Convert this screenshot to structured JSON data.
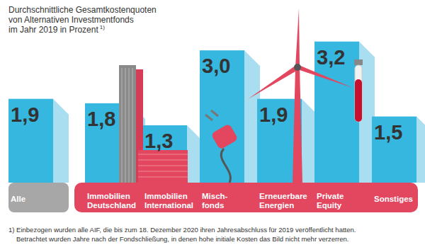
{
  "chart_data": {
    "type": "bar",
    "title": "Durchschnittliche Gesamtkostenquoten\nvon Alternativen Investmentfonds\nim Jahr 2019 in Prozent",
    "title_note": "1)",
    "categories": [
      "Alle",
      "Immobilien\nDeutschland",
      "Immobilien\nInternational",
      "Misch-\nfonds",
      "Erneuerbare\nEnergien",
      "Private\nEquity",
      "Sonstiges"
    ],
    "values": [
      1.9,
      1.8,
      1.3,
      3.0,
      1.9,
      3.2,
      1.5
    ],
    "value_labels": [
      "1,9",
      "1,8",
      "1,3",
      "3,0",
      "1,9",
      "3,2",
      "1,5"
    ],
    "color": "#35b7e0",
    "ylim": [
      0,
      3.5
    ],
    "tick_labels": false,
    "data_labels": true,
    "grid": false,
    "footnote": "1) Einbezogen wurden alle AIF, die bis zum 18. Dezember 2020 ihren Jahresabschluss für 2019 veröffentlicht hatten.\nBetrachtet wurden Jahre nach der Fondschließung, in denen hohe initiale Kosten das Bild nicht mehr verzerren."
  }
}
